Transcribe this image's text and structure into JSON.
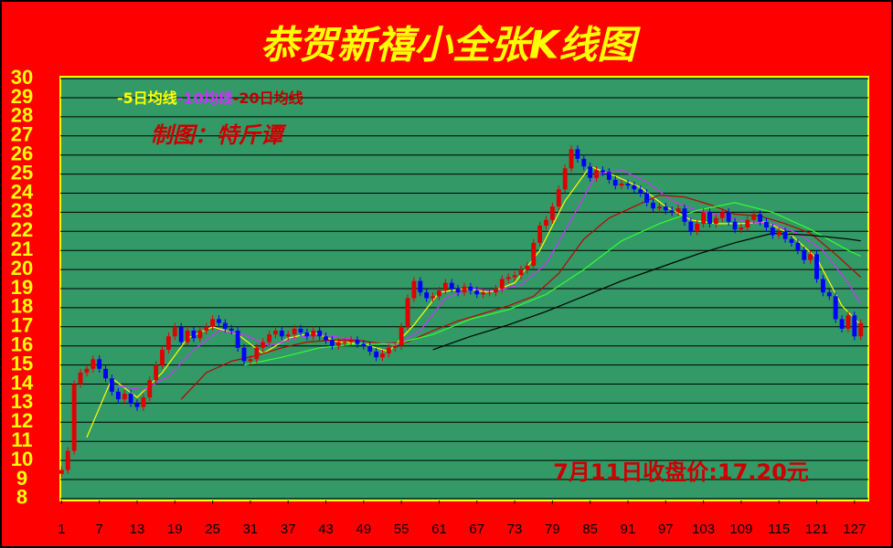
{
  "chart_data": {
    "type": "candlestick",
    "title": "恭贺新禧小全张K线图",
    "subtitle": "制图：特斤谭",
    "annotation": "7月11日收盘价:17.20元",
    "xlim": [
      0.8,
      129.2
    ],
    "xticks": [
      1,
      7,
      13,
      19,
      25,
      31,
      37,
      43,
      49,
      55,
      61,
      67,
      73,
      79,
      85,
      91,
      97,
      103,
      109,
      115,
      121,
      127
    ],
    "ylim": [
      7.9,
      30.1
    ],
    "yticks": [
      8,
      9,
      10,
      11,
      12,
      13,
      14,
      15,
      16,
      17,
      18,
      19,
      20,
      21,
      22,
      23,
      24,
      25,
      26,
      27,
      28,
      29,
      30
    ],
    "grid": true,
    "up_color": "#e00000",
    "down_color": "#0000ff",
    "candles": {
      "x": [
        1,
        2,
        3,
        4,
        5,
        6,
        7,
        8,
        9,
        10,
        11,
        12,
        13,
        14,
        15,
        16,
        17,
        18,
        19,
        20,
        21,
        22,
        23,
        24,
        25,
        26,
        27,
        28,
        29,
        30,
        31,
        32,
        33,
        34,
        35,
        36,
        37,
        38,
        39,
        40,
        41,
        42,
        43,
        44,
        45,
        46,
        47,
        48,
        49,
        50,
        51,
        52,
        53,
        54,
        55,
        56,
        57,
        58,
        59,
        60,
        61,
        62,
        63,
        64,
        65,
        66,
        67,
        68,
        69,
        70,
        71,
        72,
        73,
        74,
        75,
        76,
        77,
        78,
        79,
        80,
        81,
        82,
        83,
        84,
        85,
        86,
        87,
        88,
        89,
        90,
        91,
        92,
        93,
        94,
        95,
        96,
        97,
        98,
        99,
        100,
        101,
        102,
        103,
        104,
        105,
        106,
        107,
        108,
        109,
        110,
        111,
        112,
        113,
        114,
        115,
        116,
        117,
        118,
        119,
        120,
        121,
        122,
        123,
        124,
        125,
        126,
        127,
        128
      ],
      "open": [
        9.3,
        9.5,
        10.5,
        14.0,
        14.6,
        14.8,
        15.3,
        14.8,
        14.3,
        13.6,
        13.2,
        13.5,
        13.0,
        12.8,
        13.3,
        14.2,
        15.0,
        15.8,
        16.5,
        17.0,
        16.2,
        16.8,
        16.4,
        16.8,
        17.0,
        17.4,
        17.2,
        16.9,
        16.8,
        15.9,
        15.2,
        15.3,
        15.9,
        16.2,
        16.6,
        16.8,
        16.5,
        16.6,
        16.9,
        16.7,
        16.5,
        16.8,
        16.5,
        16.3,
        16.0,
        16.2,
        16.2,
        16.3,
        16.1,
        16.0,
        15.7,
        15.4,
        15.6,
        15.9,
        16.0,
        17.0,
        18.5,
        19.4,
        18.8,
        18.5,
        18.6,
        18.9,
        19.3,
        19.0,
        18.8,
        19.1,
        18.9,
        18.7,
        18.8,
        18.8,
        19.0,
        19.5,
        19.6,
        19.7,
        20.0,
        20.2,
        21.4,
        22.3,
        22.6,
        23.3,
        24.2,
        25.3,
        26.3,
        25.8,
        25.4,
        24.8,
        25.2,
        25.1,
        24.7,
        24.4,
        24.5,
        24.4,
        24.2,
        24.0,
        23.5,
        23.2,
        23.3,
        23.1,
        23.0,
        23.2,
        22.5,
        22.0,
        22.4,
        23.0,
        22.4,
        22.7,
        23.0,
        22.5,
        22.1,
        22.2,
        22.6,
        22.9,
        22.5,
        22.2,
        21.8,
        22.0,
        21.6,
        21.4,
        21.0,
        20.5,
        20.8,
        19.5,
        18.8,
        18.6,
        17.4,
        16.9,
        17.6,
        16.5
      ],
      "high": [
        9.7,
        10.7,
        14.2,
        14.8,
        15.0,
        15.5,
        15.5,
        15.0,
        14.5,
        13.8,
        13.7,
        13.7,
        13.2,
        13.5,
        14.4,
        15.2,
        16.0,
        16.7,
        17.2,
        17.2,
        17.0,
        17.0,
        17.0,
        17.2,
        17.6,
        17.6,
        17.4,
        17.1,
        17.0,
        16.1,
        15.5,
        16.1,
        16.4,
        16.8,
        17.0,
        17.0,
        16.8,
        17.1,
        17.1,
        16.9,
        17.0,
        17.0,
        16.7,
        16.5,
        16.4,
        16.4,
        16.5,
        16.5,
        16.3,
        16.2,
        15.9,
        15.8,
        16.1,
        16.2,
        17.2,
        18.7,
        19.6,
        19.6,
        19.0,
        18.8,
        19.1,
        19.5,
        19.5,
        19.2,
        19.3,
        19.3,
        19.1,
        19.0,
        19.0,
        19.2,
        19.7,
        19.8,
        19.9,
        20.2,
        20.4,
        21.6,
        22.5,
        22.8,
        23.5,
        24.4,
        25.5,
        26.5,
        26.5,
        26.0,
        25.6,
        25.4,
        25.4,
        25.3,
        24.9,
        24.7,
        24.7,
        24.6,
        24.4,
        24.2,
        23.7,
        23.5,
        23.5,
        23.3,
        23.4,
        23.4,
        22.7,
        22.6,
        23.2,
        23.2,
        22.9,
        23.2,
        23.2,
        22.7,
        22.4,
        22.8,
        23.1,
        23.1,
        22.7,
        22.4,
        22.2,
        22.2,
        21.8,
        21.6,
        21.2,
        21.0,
        21.0,
        19.7,
        19.0,
        18.8,
        17.6,
        17.8,
        17.8,
        17.4
      ],
      "low": [
        9.1,
        9.3,
        10.3,
        13.8,
        14.4,
        14.6,
        14.6,
        14.1,
        13.4,
        13.0,
        13.0,
        12.8,
        12.6,
        12.6,
        13.1,
        14.0,
        14.8,
        15.6,
        16.3,
        16.0,
        16.0,
        16.2,
        16.2,
        16.6,
        16.8,
        17.0,
        16.7,
        16.6,
        15.7,
        15.0,
        15.0,
        15.1,
        15.7,
        16.0,
        16.4,
        16.3,
        16.3,
        16.4,
        16.5,
        16.3,
        16.3,
        16.3,
        16.1,
        15.8,
        15.8,
        16.0,
        16.0,
        15.9,
        15.8,
        15.5,
        15.2,
        15.2,
        15.4,
        15.7,
        15.8,
        16.8,
        18.3,
        18.6,
        18.3,
        18.3,
        18.4,
        18.7,
        18.8,
        18.6,
        18.6,
        18.7,
        18.5,
        18.5,
        18.6,
        18.6,
        18.8,
        19.3,
        19.4,
        19.5,
        19.8,
        20.0,
        21.2,
        22.1,
        22.4,
        23.1,
        24.0,
        25.1,
        25.6,
        25.2,
        24.6,
        24.6,
        24.9,
        24.5,
        24.2,
        24.2,
        24.2,
        24.0,
        23.8,
        23.3,
        23.0,
        23.0,
        22.9,
        22.8,
        22.8,
        22.3,
        21.8,
        21.8,
        22.2,
        22.2,
        22.2,
        22.5,
        22.3,
        21.9,
        21.9,
        22.0,
        22.4,
        22.3,
        22.0,
        21.6,
        21.6,
        21.4,
        21.2,
        20.8,
        20.3,
        20.3,
        19.3,
        18.6,
        18.4,
        17.2,
        16.7,
        16.7,
        16.3,
        16.3
      ],
      "close": [
        9.5,
        10.5,
        14.0,
        14.6,
        14.8,
        15.3,
        14.8,
        14.3,
        13.6,
        13.2,
        13.5,
        13.0,
        12.8,
        13.3,
        14.2,
        15.0,
        15.8,
        16.5,
        17.0,
        16.2,
        16.8,
        16.4,
        16.8,
        17.0,
        17.4,
        17.2,
        16.9,
        16.8,
        15.9,
        15.2,
        15.3,
        15.9,
        16.2,
        16.6,
        16.8,
        16.5,
        16.6,
        16.9,
        16.7,
        16.5,
        16.8,
        16.5,
        16.3,
        16.0,
        16.2,
        16.2,
        16.3,
        16.1,
        16.0,
        15.7,
        15.4,
        15.6,
        15.9,
        16.0,
        17.0,
        18.5,
        19.4,
        18.8,
        18.5,
        18.6,
        18.9,
        19.3,
        19.0,
        18.8,
        19.1,
        18.9,
        18.7,
        18.8,
        18.8,
        19.0,
        19.5,
        19.6,
        19.7,
        20.0,
        20.2,
        21.4,
        22.3,
        22.6,
        23.3,
        24.2,
        25.3,
        26.3,
        25.8,
        25.4,
        24.8,
        25.2,
        25.1,
        24.7,
        24.4,
        24.5,
        24.4,
        24.2,
        24.0,
        23.5,
        23.2,
        23.3,
        23.1,
        23.0,
        23.2,
        22.5,
        22.0,
        22.4,
        23.0,
        22.4,
        22.7,
        23.0,
        22.5,
        22.1,
        22.2,
        22.6,
        22.9,
        22.5,
        22.2,
        21.8,
        22.0,
        21.6,
        21.4,
        21.0,
        20.5,
        20.8,
        19.5,
        18.8,
        18.6,
        17.4,
        16.9,
        17.6,
        16.5,
        17.2
      ]
    },
    "series": [
      {
        "name": "-5日均线",
        "color": "#ffff00",
        "x": [
          5,
          9,
          13,
          17,
          21,
          25,
          29,
          33,
          37,
          41,
          45,
          49,
          53,
          57,
          61,
          65,
          69,
          73,
          77,
          81,
          85,
          89,
          93,
          97,
          101,
          105,
          109,
          113,
          117,
          121,
          125,
          128
        ],
        "values": [
          11.2,
          14.3,
          13.3,
          14.6,
          16.4,
          17.0,
          16.6,
          15.6,
          16.4,
          16.7,
          16.2,
          16.1,
          15.7,
          17.1,
          18.8,
          19.0,
          18.8,
          19.3,
          21.0,
          23.6,
          25.4,
          24.9,
          24.3,
          23.3,
          22.6,
          22.4,
          22.4,
          22.5,
          21.8,
          20.6,
          18.1,
          17.1
        ]
      },
      {
        "name": "-10均线",
        "color": "#cc33ff",
        "x": [
          10,
          14,
          18,
          22,
          26,
          30,
          34,
          38,
          42,
          46,
          50,
          54,
          58,
          62,
          66,
          70,
          74,
          78,
          82,
          86,
          90,
          94,
          98,
          102,
          106,
          110,
          114,
          118,
          122,
          126,
          128
        ],
        "values": [
          13.9,
          13.7,
          14.4,
          15.8,
          16.8,
          16.6,
          16.0,
          16.4,
          16.6,
          16.4,
          16.2,
          16.0,
          16.8,
          18.5,
          19.0,
          18.9,
          19.2,
          20.3,
          22.6,
          25.0,
          25.2,
          24.6,
          23.6,
          23.1,
          22.8,
          22.5,
          22.4,
          21.9,
          21.0,
          19.3,
          18.2
        ]
      },
      {
        "name": "-20日均线",
        "color": "#c00000",
        "x": [
          20,
          24,
          28,
          32,
          36,
          40,
          44,
          48,
          52,
          56,
          60,
          64,
          68,
          72,
          76,
          80,
          84,
          88,
          92,
          96,
          100,
          104,
          108,
          112,
          116,
          120,
          124,
          128
        ],
        "values": [
          13.2,
          14.6,
          15.2,
          15.5,
          15.9,
          16.2,
          16.3,
          16.3,
          16.1,
          16.2,
          16.8,
          17.3,
          17.7,
          18.1,
          18.6,
          19.8,
          21.6,
          22.7,
          23.3,
          23.9,
          23.8,
          23.4,
          22.9,
          22.8,
          22.4,
          21.9,
          20.8,
          19.6
        ]
      },
      {
        "color": "#33ff33",
        "x": [
          30,
          36,
          42,
          48,
          54,
          60,
          66,
          72,
          78,
          84,
          90,
          96,
          102,
          108,
          114,
          120,
          126,
          128
        ],
        "values": [
          15.0,
          15.4,
          15.9,
          16.1,
          16.1,
          16.6,
          17.4,
          17.9,
          18.7,
          20.0,
          21.5,
          22.4,
          23.1,
          23.5,
          23.0,
          22.1,
          21.0,
          20.7
        ]
      },
      {
        "color": "#000000",
        "x": [
          60,
          66,
          72,
          78,
          84,
          90,
          96,
          102,
          108,
          114,
          120,
          126,
          128
        ],
        "values": [
          15.8,
          16.5,
          17.1,
          17.8,
          18.6,
          19.4,
          20.1,
          20.8,
          21.4,
          21.9,
          21.8,
          21.6,
          21.5
        ]
      }
    ]
  }
}
